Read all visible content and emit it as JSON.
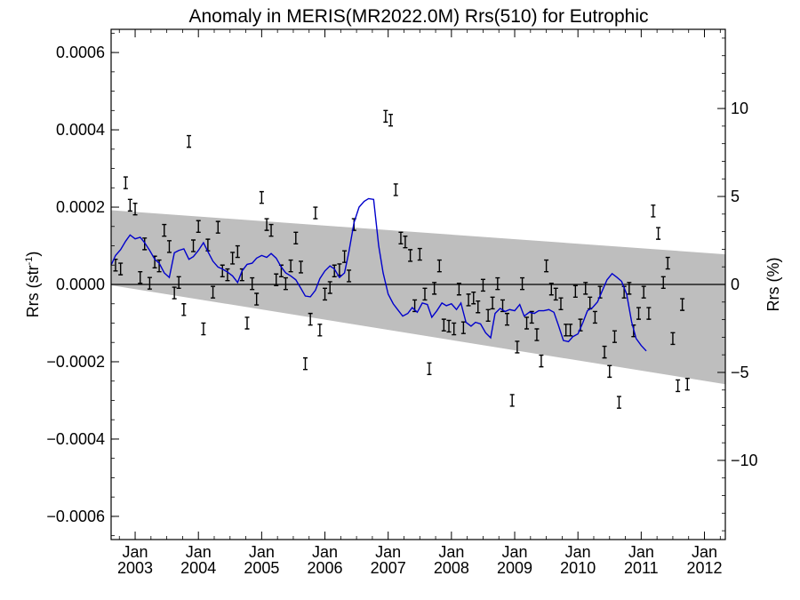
{
  "chart_data": {
    "type": "scatter",
    "title": "Anomaly in MERIS(MR2022.0M) Rrs(510) for Eutrophic",
    "ylabel_left": "Rrs (str",
    "ylabel_left_sup": "-1",
    "ylabel_left_close": ")",
    "ylabel_right": "Rrs (%)",
    "ylim": [
      -0.00066,
      0.00066
    ],
    "xlim": [
      2002.62,
      2012.33
    ],
    "y2lim": [
      -14.5,
      14.5
    ],
    "yticks": [
      {
        "v": 0.0006,
        "label": "0.0006"
      },
      {
        "v": 0.0004,
        "label": "0.0004"
      },
      {
        "v": 0.0002,
        "label": "0.0002"
      },
      {
        "v": 0.0,
        "label": "0.0000"
      },
      {
        "v": -0.0002,
        "label": "−0.0002"
      },
      {
        "v": -0.0004,
        "label": "−0.0004"
      },
      {
        "v": -0.0006,
        "label": "−0.0006"
      }
    ],
    "y2ticks": [
      {
        "v": 10,
        "label": "10"
      },
      {
        "v": 5,
        "label": "5"
      },
      {
        "v": 0,
        "label": "0"
      },
      {
        "v": -5,
        "label": "−5"
      },
      {
        "v": -10,
        "label": "−10"
      }
    ],
    "xticks": [
      {
        "v": 2003.0,
        "month": "Jan",
        "year": "2003"
      },
      {
        "v": 2004.0,
        "month": "Jan",
        "year": "2004"
      },
      {
        "v": 2005.0,
        "month": "Jan",
        "year": "2005"
      },
      {
        "v": 2006.0,
        "month": "Jan",
        "year": "2006"
      },
      {
        "v": 2007.0,
        "month": "Jan",
        "year": "2007"
      },
      {
        "v": 2008.0,
        "month": "Jan",
        "year": "2008"
      },
      {
        "v": 2009.0,
        "month": "Jan",
        "year": "2009"
      },
      {
        "v": 2010.0,
        "month": "Jan",
        "year": "2010"
      },
      {
        "v": 2011.0,
        "month": "Jan",
        "year": "2011"
      },
      {
        "v": 2012.0,
        "month": "Jan",
        "year": "2012"
      }
    ],
    "band": {
      "x": [
        2002.62,
        2012.33
      ],
      "upper": [
        0.000192,
        7.8e-05
      ],
      "lower": [
        -2e-06,
        -0.000258
      ]
    },
    "zero_line": 0,
    "err": 1.5e-05,
    "points": [
      [
        2002.69,
        5e-05
      ],
      [
        2002.77,
        4e-05
      ],
      [
        2002.85,
        0.000263
      ],
      [
        2002.92,
        0.000205
      ],
      [
        2003.0,
        0.000195
      ],
      [
        2003.08,
        1.8e-05
      ],
      [
        2003.15,
        0.000105
      ],
      [
        2003.23,
        3e-06
      ],
      [
        2003.31,
        5.8e-05
      ],
      [
        2003.38,
        4.8e-05
      ],
      [
        2003.46,
        0.00014
      ],
      [
        2003.54,
        9.8e-05
      ],
      [
        2003.62,
        -2.2e-05
      ],
      [
        2003.69,
        5e-06
      ],
      [
        2003.77,
        -6.5e-05
      ],
      [
        2003.85,
        0.00037
      ],
      [
        2003.92,
        0.0001
      ],
      [
        2004.0,
        0.00015
      ],
      [
        2004.08,
        -0.000115
      ],
      [
        2004.15,
        0.000102
      ],
      [
        2004.23,
        -2e-05
      ],
      [
        2004.31,
        0.000148
      ],
      [
        2004.38,
        3.5e-05
      ],
      [
        2004.46,
        2.5e-05
      ],
      [
        2004.54,
        6.8e-05
      ],
      [
        2004.62,
        8.5e-05
      ],
      [
        2004.69,
        2.5e-05
      ],
      [
        2004.77,
        -0.0001
      ],
      [
        2004.85,
        2e-06
      ],
      [
        2004.92,
        -3.8e-05
      ],
      [
        2005.0,
        0.000225
      ],
      [
        2005.08,
        0.000155
      ],
      [
        2005.15,
        0.00014
      ],
      [
        2005.23,
        1.2e-05
      ],
      [
        2005.31,
        3.5e-05
      ],
      [
        2005.38,
        2e-06
      ],
      [
        2005.46,
        4.8e-05
      ],
      [
        2005.54,
        0.00012
      ],
      [
        2005.62,
        4.5e-05
      ],
      [
        2005.69,
        -0.000205
      ],
      [
        2005.77,
        -9e-05
      ],
      [
        2005.85,
        0.000185
      ],
      [
        2005.92,
        -0.000118
      ],
      [
        2006.0,
        -2.5e-05
      ],
      [
        2006.08,
        -8e-06
      ],
      [
        2006.15,
        3.5e-05
      ],
      [
        2006.23,
        3.8e-05
      ],
      [
        2006.31,
        7.2e-05
      ],
      [
        2006.38,
        2.2e-05
      ],
      [
        2006.46,
        0.000155
      ],
      [
        2006.96,
        0.000435
      ],
      [
        2007.04,
        0.000425
      ],
      [
        2007.12,
        0.000245
      ],
      [
        2007.2,
        0.00012
      ],
      [
        2007.27,
        0.00011
      ],
      [
        2007.35,
        7.5e-05
      ],
      [
        2007.42,
        -5.5e-05
      ],
      [
        2007.5,
        7.8e-05
      ],
      [
        2007.58,
        -2.5e-05
      ],
      [
        2007.65,
        -0.000218
      ],
      [
        2007.73,
        -1e-05
      ],
      [
        2007.81,
        4.8e-05
      ],
      [
        2007.88,
        -0.000105
      ],
      [
        2007.96,
        -0.000108
      ],
      [
        2008.04,
        -0.000115
      ],
      [
        2008.12,
        -1.2e-05
      ],
      [
        2008.19,
        -0.000112
      ],
      [
        2008.27,
        -4e-05
      ],
      [
        2008.35,
        -3.5e-05
      ],
      [
        2008.42,
        -5.8e-05
      ],
      [
        2008.5,
        -2e-06
      ],
      [
        2008.58,
        -8e-05
      ],
      [
        2008.65,
        -4.8e-05
      ],
      [
        2008.73,
        2e-06
      ],
      [
        2008.81,
        -5.5e-05
      ],
      [
        2008.88,
        -9e-05
      ],
      [
        2008.96,
        -0.0003
      ],
      [
        2009.04,
        -0.000162
      ],
      [
        2009.12,
        2e-06
      ],
      [
        2009.19,
        -0.0001
      ],
      [
        2009.27,
        -8.5e-05
      ],
      [
        2009.35,
        -0.00013
      ],
      [
        2009.42,
        -0.000198
      ],
      [
        2009.5,
        4.8e-05
      ],
      [
        2009.58,
        -1.2e-05
      ],
      [
        2009.65,
        -2.5e-05
      ],
      [
        2009.73,
        -5e-05
      ],
      [
        2009.81,
        -0.000118
      ],
      [
        2009.88,
        -0.000118
      ],
      [
        2009.96,
        -1.8e-05
      ],
      [
        2010.04,
        -0.000105
      ],
      [
        2010.12,
        -1e-05
      ],
      [
        2010.19,
        -4.8e-05
      ],
      [
        2010.27,
        -8.5e-05
      ],
      [
        2010.35,
        -2e-05
      ],
      [
        2010.42,
        -0.000175
      ],
      [
        2010.5,
        -0.000225
      ],
      [
        2010.58,
        -0.000135
      ],
      [
        2010.65,
        -0.000305
      ],
      [
        2010.73,
        -2e-05
      ],
      [
        2010.81,
        -1e-05
      ],
      [
        2010.88,
        -0.00012
      ],
      [
        2010.96,
        -7.5e-05
      ],
      [
        2011.04,
        -2e-05
      ],
      [
        2011.12,
        -7.5e-05
      ],
      [
        2011.19,
        0.00019
      ],
      [
        2011.27,
        0.000132
      ],
      [
        2011.35,
        5e-06
      ],
      [
        2011.42,
        5.5e-05
      ],
      [
        2011.5,
        -0.00014
      ],
      [
        2011.58,
        -0.000262
      ],
      [
        2011.65,
        -5.2e-05
      ],
      [
        2011.73,
        -0.000258
      ]
    ],
    "smooth": [
      [
        2002.62,
        5e-05
      ],
      [
        2002.69,
        7.5e-05
      ],
      [
        2002.77,
        9e-05
      ],
      [
        2002.85,
        0.000112
      ],
      [
        2002.92,
        0.000128
      ],
      [
        2003.0,
        0.000118
      ],
      [
        2003.08,
        0.000122
      ],
      [
        2003.15,
        0.000108
      ],
      [
        2003.23,
        8.8e-05
      ],
      [
        2003.31,
        6.5e-05
      ],
      [
        2003.38,
        5.5e-05
      ],
      [
        2003.46,
        3e-05
      ],
      [
        2003.54,
        1.8e-05
      ],
      [
        2003.62,
        8.2e-05
      ],
      [
        2003.69,
        8.8e-05
      ],
      [
        2003.77,
        9.2e-05
      ],
      [
        2003.85,
        6.5e-05
      ],
      [
        2003.92,
        7.2e-05
      ],
      [
        2004.0,
        8.8e-05
      ],
      [
        2004.08,
        0.000108
      ],
      [
        2004.15,
        8.5e-05
      ],
      [
        2004.23,
        6e-05
      ],
      [
        2004.31,
        4.5e-05
      ],
      [
        2004.38,
        4e-05
      ],
      [
        2004.46,
        3.2e-05
      ],
      [
        2004.54,
        2.2e-05
      ],
      [
        2004.62,
        5e-06
      ],
      [
        2004.69,
        3.5e-05
      ],
      [
        2004.77,
        5.2e-05
      ],
      [
        2004.85,
        5.5e-05
      ],
      [
        2004.92,
        6.8e-05
      ],
      [
        2005.0,
        7.5e-05
      ],
      [
        2005.08,
        7e-05
      ],
      [
        2005.15,
        8e-05
      ],
      [
        2005.23,
        6.8e-05
      ],
      [
        2005.31,
        4.5e-05
      ],
      [
        2005.38,
        3e-05
      ],
      [
        2005.46,
        2.2e-05
      ],
      [
        2005.54,
        1.2e-05
      ],
      [
        2005.62,
        -1e-05
      ],
      [
        2005.69,
        -3e-05
      ],
      [
        2005.77,
        -3.2e-05
      ],
      [
        2005.85,
        -1.5e-05
      ],
      [
        2005.92,
        1.5e-05
      ],
      [
        2006.0,
        3.5e-05
      ],
      [
        2006.08,
        4.8e-05
      ],
      [
        2006.15,
        4e-05
      ],
      [
        2006.23,
        1.8e-05
      ],
      [
        2006.31,
        3e-05
      ],
      [
        2006.38,
        8.5e-05
      ],
      [
        2006.46,
        0.00016
      ],
      [
        2006.54,
        0.0002
      ],
      [
        2006.62,
        0.000215
      ],
      [
        2006.69,
        0.000222
      ],
      [
        2006.77,
        0.00022
      ],
      [
        2006.85,
        0.0001
      ],
      [
        2006.92,
        3e-05
      ],
      [
        2007.0,
        -2.5e-05
      ],
      [
        2007.08,
        -5e-05
      ],
      [
        2007.15,
        -6.5e-05
      ],
      [
        2007.23,
        -8.2e-05
      ],
      [
        2007.31,
        -7.5e-05
      ],
      [
        2007.38,
        -6e-05
      ],
      [
        2007.46,
        -7.2e-05
      ],
      [
        2007.54,
        -4.8e-05
      ],
      [
        2007.62,
        -5.2e-05
      ],
      [
        2007.69,
        -8.5e-05
      ],
      [
        2007.77,
        -6.8e-05
      ],
      [
        2007.85,
        -4.8e-05
      ],
      [
        2007.92,
        -5.5e-05
      ],
      [
        2008.0,
        -5e-05
      ],
      [
        2008.08,
        -6.5e-05
      ],
      [
        2008.15,
        -4.8e-05
      ],
      [
        2008.23,
        -9.8e-05
      ],
      [
        2008.31,
        -0.000108
      ],
      [
        2008.38,
        -9.8e-05
      ],
      [
        2008.46,
        -0.000102
      ],
      [
        2008.54,
        -0.000125
      ],
      [
        2008.62,
        -0.000138
      ],
      [
        2008.69,
        -7.5e-05
      ],
      [
        2008.77,
        -6.2e-05
      ],
      [
        2008.85,
        -7e-05
      ],
      [
        2008.92,
        -6.5e-05
      ],
      [
        2009.0,
        -6.8e-05
      ],
      [
        2009.08,
        -5.2e-05
      ],
      [
        2009.15,
        -8.2e-05
      ],
      [
        2009.23,
        -7.2e-05
      ],
      [
        2009.31,
        -7.5e-05
      ],
      [
        2009.38,
        -6.8e-05
      ],
      [
        2009.46,
        -6.8e-05
      ],
      [
        2009.54,
        -6.5e-05
      ],
      [
        2009.62,
        -7.2e-05
      ],
      [
        2009.69,
        -0.000105
      ],
      [
        2009.77,
        -0.000145
      ],
      [
        2009.85,
        -0.000148
      ],
      [
        2009.92,
        -0.000135
      ],
      [
        2010.0,
        -0.000128
      ],
      [
        2010.08,
        -9.8e-05
      ],
      [
        2010.15,
        -6.8e-05
      ],
      [
        2010.23,
        -6e-05
      ],
      [
        2010.31,
        -4.5e-05
      ],
      [
        2010.38,
        -1.8e-05
      ],
      [
        2010.46,
        1.2e-05
      ],
      [
        2010.54,
        2.8e-05
      ],
      [
        2010.62,
        1.8e-05
      ],
      [
        2010.69,
        8e-06
      ],
      [
        2010.77,
        -2.5e-05
      ],
      [
        2010.85,
        -9.8e-05
      ],
      [
        2010.92,
        -0.00014
      ],
      [
        2011.0,
        -0.000158
      ],
      [
        2011.08,
        -0.000172
      ]
    ]
  }
}
